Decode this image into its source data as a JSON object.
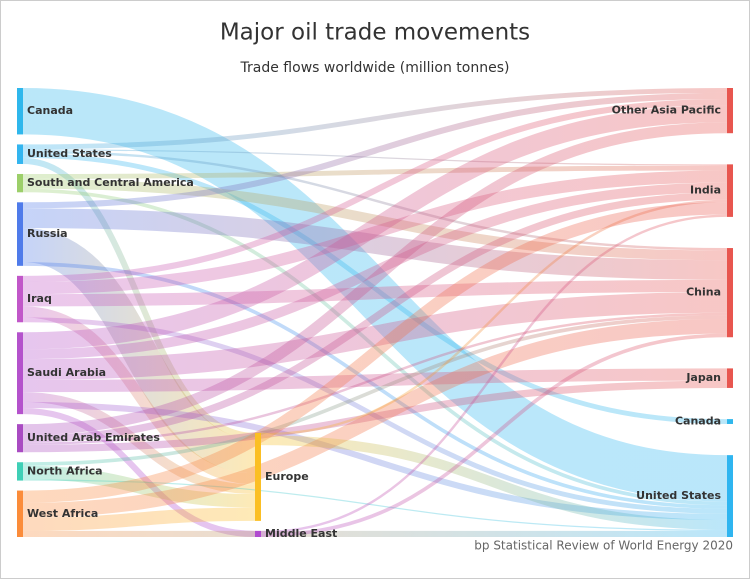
{
  "chart_data": {
    "type": "sankey",
    "title": "Major oil trade movements",
    "subtitle": "Trade flows worldwide (million tonnes)",
    "source": "bp Statistical Review of World Energy 2020",
    "nodes": [
      {
        "name": "Canada",
        "color": "#2fb7ec"
      },
      {
        "name": "United States",
        "color": "#33b5ef"
      },
      {
        "name": "South and Central America",
        "color": "#9ccf6a"
      },
      {
        "name": "Russia",
        "color": "#4f7bea"
      },
      {
        "name": "Iraq",
        "color": "#c157c9"
      },
      {
        "name": "Saudi Arabia",
        "color": "#b452cc"
      },
      {
        "name": "United Arab Emirates",
        "color": "#a94bc2"
      },
      {
        "name": "North Africa",
        "color": "#3fcfb6"
      },
      {
        "name": "West Africa",
        "color": "#fb8c3a"
      },
      {
        "name": "Europe",
        "color": "#fbbf24"
      },
      {
        "name": "Middle East",
        "color": "#b04bd0"
      },
      {
        "name": "Other Asia Pacific",
        "color": "#e8564f"
      },
      {
        "name": "India",
        "color": "#e8564f"
      },
      {
        "name": "China",
        "color": "#e8564f"
      },
      {
        "name": "Japan",
        "color": "#e8564f"
      },
      {
        "name": "Canada",
        "color": "#2fb7ec"
      },
      {
        "name": "United States",
        "color": "#2fb5f0"
      }
    ],
    "links": [
      {
        "source": 0,
        "target": 16,
        "value": 190
      },
      {
        "source": 1,
        "target": 11,
        "value": 20
      },
      {
        "source": 1,
        "target": 9,
        "value": 25
      },
      {
        "source": 1,
        "target": 13,
        "value": 10
      },
      {
        "source": 1,
        "target": 12,
        "value": 5
      },
      {
        "source": 1,
        "target": 15,
        "value": 20
      },
      {
        "source": 2,
        "target": 12,
        "value": 20
      },
      {
        "source": 2,
        "target": 13,
        "value": 40
      },
      {
        "source": 2,
        "target": 16,
        "value": 15
      },
      {
        "source": 3,
        "target": 9,
        "value": 140
      },
      {
        "source": 3,
        "target": 13,
        "value": 80
      },
      {
        "source": 3,
        "target": 11,
        "value": 25
      },
      {
        "source": 3,
        "target": 16,
        "value": 15
      },
      {
        "source": 4,
        "target": 12,
        "value": 50
      },
      {
        "source": 4,
        "target": 13,
        "value": 50
      },
      {
        "source": 4,
        "target": 9,
        "value": 45
      },
      {
        "source": 4,
        "target": 11,
        "value": 25
      },
      {
        "source": 4,
        "target": 16,
        "value": 20
      },
      {
        "source": 5,
        "target": 13,
        "value": 85
      },
      {
        "source": 5,
        "target": 12,
        "value": 40
      },
      {
        "source": 5,
        "target": 14,
        "value": 50
      },
      {
        "source": 5,
        "target": 11,
        "value": 70
      },
      {
        "source": 5,
        "target": 9,
        "value": 40
      },
      {
        "source": 5,
        "target": 16,
        "value": 25
      },
      {
        "source": 5,
        "target": 10,
        "value": 25
      },
      {
        "source": 6,
        "target": 12,
        "value": 30
      },
      {
        "source": 6,
        "target": 14,
        "value": 30
      },
      {
        "source": 6,
        "target": 11,
        "value": 45
      },
      {
        "source": 6,
        "target": 13,
        "value": 10
      },
      {
        "source": 7,
        "target": 9,
        "value": 55
      },
      {
        "source": 7,
        "target": 13,
        "value": 15
      },
      {
        "source": 7,
        "target": 16,
        "value": 5
      },
      {
        "source": 8,
        "target": 9,
        "value": 55
      },
      {
        "source": 8,
        "target": 12,
        "value": 50
      },
      {
        "source": 8,
        "target": 13,
        "value": 60
      },
      {
        "source": 8,
        "target": 16,
        "value": 25
      },
      {
        "source": 9,
        "target": 16,
        "value": 40
      },
      {
        "source": 9,
        "target": 12,
        "value": 10
      },
      {
        "source": 10,
        "target": 13,
        "value": 15
      },
      {
        "source": 10,
        "target": 12,
        "value": 10
      }
    ]
  }
}
